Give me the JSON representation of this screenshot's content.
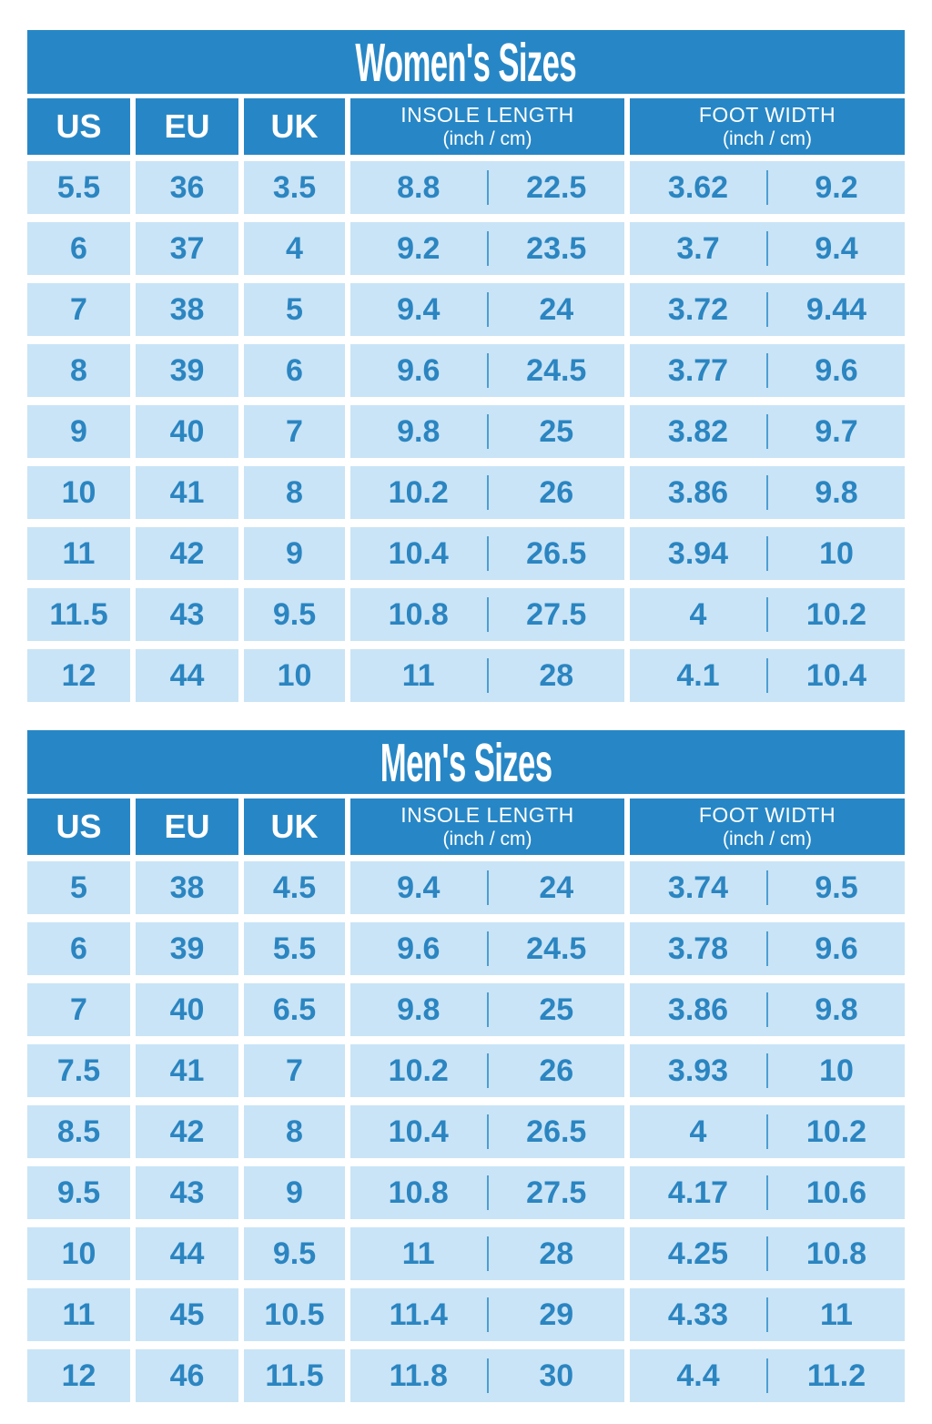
{
  "colors": {
    "blue": "#2787c6",
    "light_cell": "#c9e4f6",
    "number_text": "#2b85c1",
    "divider": "#4d9ed2",
    "title_text": "#ffffff"
  },
  "tables": [
    {
      "title": "Women's Sizes",
      "headers": {
        "us": "US",
        "eu": "EU",
        "uk": "UK",
        "insole": [
          "INSOLE LENGTH",
          "(inch / cm)"
        ],
        "foot": [
          "FOOT WIDTH",
          "(inch / cm)"
        ]
      },
      "rows": [
        [
          "5.5",
          "36",
          "3.5",
          "8.8",
          "22.5",
          "3.62",
          "9.2"
        ],
        [
          "6",
          "37",
          "4",
          "9.2",
          "23.5",
          "3.7",
          "9.4"
        ],
        [
          "7",
          "38",
          "5",
          "9.4",
          "24",
          "3.72",
          "9.44"
        ],
        [
          "8",
          "39",
          "6",
          "9.6",
          "24.5",
          "3.77",
          "9.6"
        ],
        [
          "9",
          "40",
          "7",
          "9.8",
          "25",
          "3.82",
          "9.7"
        ],
        [
          "10",
          "41",
          "8",
          "10.2",
          "26",
          "3.86",
          "9.8"
        ],
        [
          "11",
          "42",
          "9",
          "10.4",
          "26.5",
          "3.94",
          "10"
        ],
        [
          "11.5",
          "43",
          "9.5",
          "10.8",
          "27.5",
          "4",
          "10.2"
        ],
        [
          "12",
          "44",
          "10",
          "11",
          "28",
          "4.1",
          "10.4"
        ]
      ]
    },
    {
      "title": "Men's Sizes",
      "headers": {
        "us": "US",
        "eu": "EU",
        "uk": "UK",
        "insole": [
          "INSOLE LENGTH",
          "(inch / cm)"
        ],
        "foot": [
          "FOOT WIDTH",
          "(inch / cm)"
        ]
      },
      "rows": [
        [
          "5",
          "38",
          "4.5",
          "9.4",
          "24",
          "3.74",
          "9.5"
        ],
        [
          "6",
          "39",
          "5.5",
          "9.6",
          "24.5",
          "3.78",
          "9.6"
        ],
        [
          "7",
          "40",
          "6.5",
          "9.8",
          "25",
          "3.86",
          "9.8"
        ],
        [
          "7.5",
          "41",
          "7",
          "10.2",
          "26",
          "3.93",
          "10"
        ],
        [
          "8.5",
          "42",
          "8",
          "10.4",
          "26.5",
          "4",
          "10.2"
        ],
        [
          "9.5",
          "43",
          "9",
          "10.8",
          "27.5",
          "4.17",
          "10.6"
        ],
        [
          "10",
          "44",
          "9.5",
          "11",
          "28",
          "4.25",
          "10.8"
        ],
        [
          "11",
          "45",
          "10.5",
          "11.4",
          "29",
          "4.33",
          "11"
        ],
        [
          "12",
          "46",
          "11.5",
          "11.8",
          "30",
          "4.4",
          "11.2"
        ]
      ]
    }
  ]
}
